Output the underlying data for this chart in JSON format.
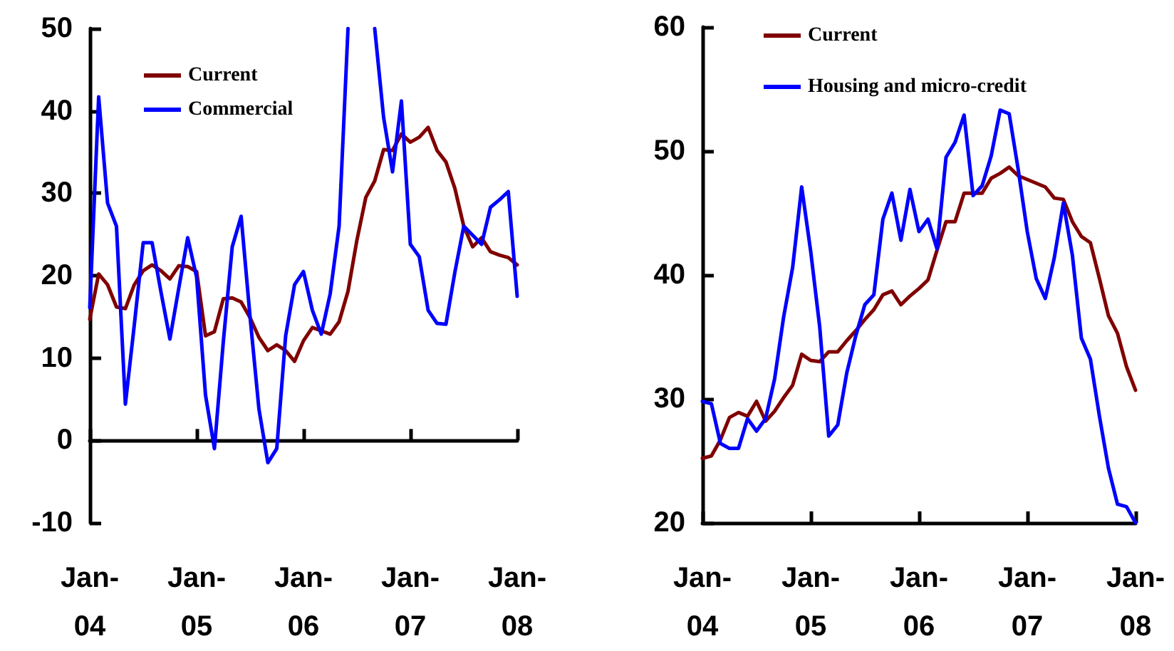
{
  "chart_data": [
    {
      "type": "line",
      "categories": [
        "Jan-04",
        null,
        null,
        null,
        null,
        null,
        null,
        null,
        null,
        null,
        null,
        null,
        "Jan-05",
        null,
        null,
        null,
        null,
        null,
        null,
        null,
        null,
        null,
        null,
        null,
        "Jan-06",
        null,
        null,
        null,
        null,
        null,
        null,
        null,
        null,
        null,
        null,
        null,
        "Jan-07",
        null,
        null,
        null,
        null,
        null,
        null,
        null,
        null,
        null,
        null,
        null,
        "Jan-08"
      ],
      "series": [
        {
          "name": "Current",
          "color": "#800000",
          "values": [
            14.7,
            20.2,
            18.9,
            16.2,
            16,
            18.9,
            20.6,
            21.3,
            20.6,
            19.6,
            21.2,
            21.1,
            20.5,
            12.7,
            13.2,
            17.2,
            17.3,
            16.8,
            14.9,
            12.5,
            10.9,
            11.6,
            10.9,
            9.6,
            12.1,
            13.7,
            13.3,
            12.9,
            14.4,
            18.1,
            24.3,
            29.5,
            31.5,
            35.3,
            35.2,
            37.2,
            36.2,
            36.8,
            38,
            35.2,
            33.8,
            30.6,
            26,
            23.5,
            24.6,
            22.9,
            22.5,
            22.2,
            21.3
          ]
        },
        {
          "name": "Commercial",
          "color": "#0000ff",
          "values": [
            16.1,
            41.7,
            28.8,
            26,
            4.4,
            14,
            24,
            24,
            18,
            12.3,
            18.5,
            24.6,
            19.8,
            5.5,
            -1,
            12,
            23.5,
            27.2,
            15,
            3.8,
            -2.7,
            -1,
            12.7,
            18.9,
            20.5,
            15.8,
            12.9,
            17.8,
            26,
            50,
            null,
            null,
            50,
            39.2,
            32.6,
            41.2,
            23.8,
            22.3,
            15.8,
            14.2,
            14.1,
            20.4,
            26,
            24.9,
            23.8,
            28.3,
            29.2,
            30.2,
            17.5
          ]
        }
      ],
      "ylim": [
        -10,
        50
      ],
      "yticks": [
        -10,
        0,
        10,
        20,
        30,
        40,
        50
      ],
      "legend": "top left",
      "line_style": "solid"
    },
    {
      "type": "line",
      "categories": [
        "Jan-04",
        null,
        null,
        null,
        null,
        null,
        null,
        null,
        null,
        null,
        null,
        null,
        "Jan-05",
        null,
        null,
        null,
        null,
        null,
        null,
        null,
        null,
        null,
        null,
        null,
        "Jan-06",
        null,
        null,
        null,
        null,
        null,
        null,
        null,
        null,
        null,
        null,
        null,
        "Jan-07",
        null,
        null,
        null,
        null,
        null,
        null,
        null,
        null,
        null,
        null,
        null,
        "Jan-08"
      ],
      "series": [
        {
          "name": "Current",
          "color": "#800000",
          "values": [
            25.2,
            25.4,
            26.7,
            28.5,
            28.9,
            28.6,
            29.8,
            28.2,
            29,
            30.1,
            31.1,
            33.6,
            33.1,
            33,
            33.8,
            33.8,
            34.7,
            35.5,
            36.4,
            37.2,
            38.4,
            38.7,
            37.6,
            38.3,
            38.9,
            39.6,
            42,
            44.3,
            44.3,
            46.6,
            46.6,
            46.6,
            47.8,
            48.2,
            48.7,
            48,
            47.7,
            47.4,
            47.1,
            46.2,
            46.1,
            44.3,
            43.1,
            42.6,
            39.7,
            36.7,
            35.3,
            32.6,
            30.7
          ]
        },
        {
          "name": "Housing and micro-credit",
          "color": "#0000ff",
          "values": [
            29.8,
            29.6,
            26.4,
            26,
            26,
            28.4,
            27.4,
            28.4,
            31.6,
            36.6,
            40.6,
            47.1,
            41.9,
            35.8,
            27,
            27.9,
            32.1,
            35.1,
            37.6,
            38.4,
            44.5,
            46.6,
            42.8,
            46.9,
            43.5,
            44.5,
            42.1,
            49.5,
            50.7,
            52.9,
            46.4,
            47.2,
            49.6,
            53.3,
            53,
            48.5,
            43.5,
            39.7,
            38.1,
            41.4,
            45.8,
            41.6,
            34.9,
            33.2,
            28.6,
            24.4,
            21.5,
            21.3,
            20
          ]
        }
      ],
      "ylim": [
        20,
        60
      ],
      "yticks": [
        20,
        30,
        40,
        50,
        60
      ],
      "legend": "top left",
      "line_style": "solid"
    }
  ]
}
